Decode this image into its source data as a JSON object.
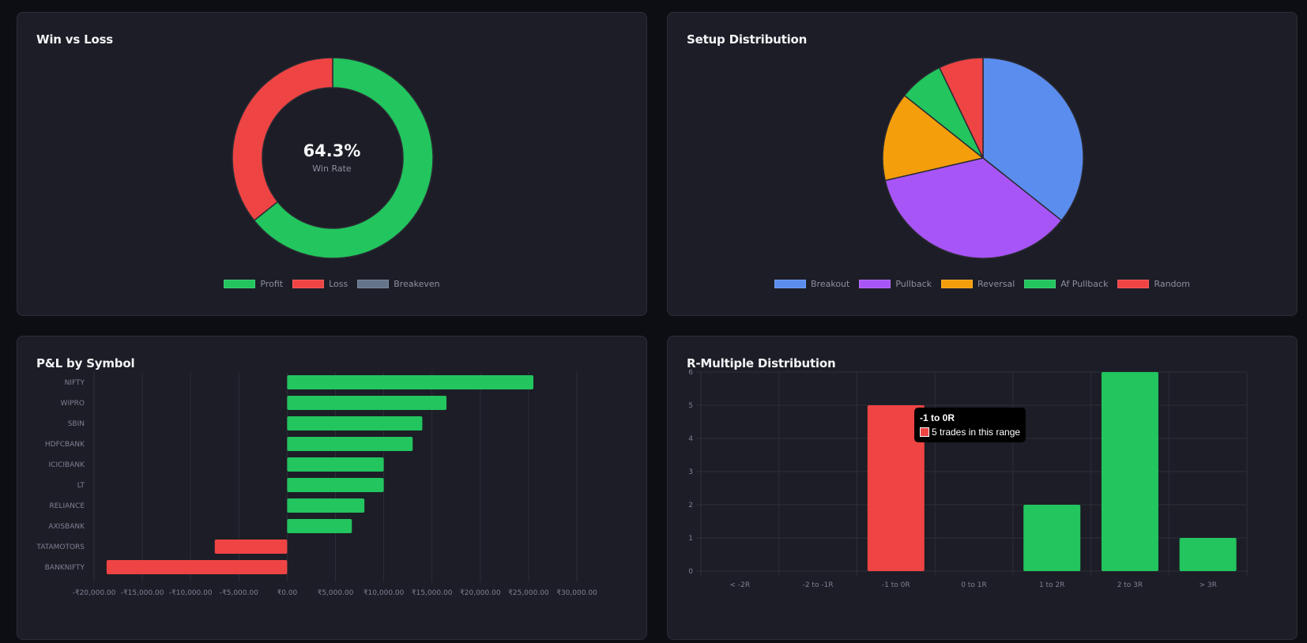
{
  "cards": {
    "winloss": {
      "title": "Win vs Loss"
    },
    "setup": {
      "title": "Setup Distribution"
    },
    "pnl": {
      "title": "P&L by Symbol"
    },
    "rmult": {
      "title": "R-Multiple Distribution"
    }
  },
  "colors": {
    "green": "#22c55e",
    "red": "#ef4444",
    "slate": "#64748b",
    "blue": "#5b8def",
    "purple": "#a855f7",
    "orange": "#f59e0b",
    "grid": "#2c2e39",
    "tick": "#7e8194"
  },
  "chart_data": [
    {
      "type": "pie",
      "variant": "doughnut",
      "labels": [
        "Profit",
        "Loss",
        "Breakeven"
      ],
      "values": [
        64.3,
        35.7,
        0
      ],
      "center_value": "64.3%",
      "center_label": "Win Rate",
      "legend": "bottom"
    },
    {
      "type": "pie",
      "labels": [
        "Breakout",
        "Pullback",
        "Reversal",
        "Af Pullback",
        "Random"
      ],
      "values": [
        35.7,
        35.7,
        14.3,
        7.15,
        7.15
      ],
      "legend": "bottom"
    },
    {
      "type": "bar",
      "orientation": "horizontal",
      "categories": [
        "NIFTY",
        "WIPRO",
        "SBIN",
        "HDFCBANK",
        "ICICIBANK",
        "LT",
        "RELIANCE",
        "AXISBANK",
        "TATAMOTORS",
        "BANKNIFTY"
      ],
      "values": [
        25500,
        16500,
        14000,
        13000,
        10000,
        10000,
        8000,
        6700,
        -7500,
        -18700
      ],
      "xlim": [
        -20000,
        30000
      ],
      "xticks": [
        "-₹20,000.00",
        "-₹15,000.00",
        "-₹10,000.00",
        "-₹5,000.00",
        "₹0.00",
        "₹5,000.00",
        "₹10,000.00",
        "₹15,000.00",
        "₹20,000.00",
        "₹25,000.00",
        "₹30,000.00"
      ],
      "xtick_values": [
        -20000,
        -15000,
        -10000,
        -5000,
        0,
        5000,
        10000,
        15000,
        20000,
        25000,
        30000
      ],
      "grid": true
    },
    {
      "type": "bar",
      "categories": [
        "< -2R",
        "-2 to -1R",
        "-1 to 0R",
        "0 to 1R",
        "1 to 2R",
        "2 to 3R",
        "> 3R"
      ],
      "values": [
        0,
        0,
        5,
        0,
        2,
        6,
        1
      ],
      "ylim": [
        0,
        6
      ],
      "yticks": [
        "0",
        "1",
        "2",
        "3",
        "4",
        "5",
        "6"
      ],
      "grid": true,
      "tooltip": {
        "title": "-1 to 0R",
        "body": "5 trades in this range"
      }
    }
  ]
}
